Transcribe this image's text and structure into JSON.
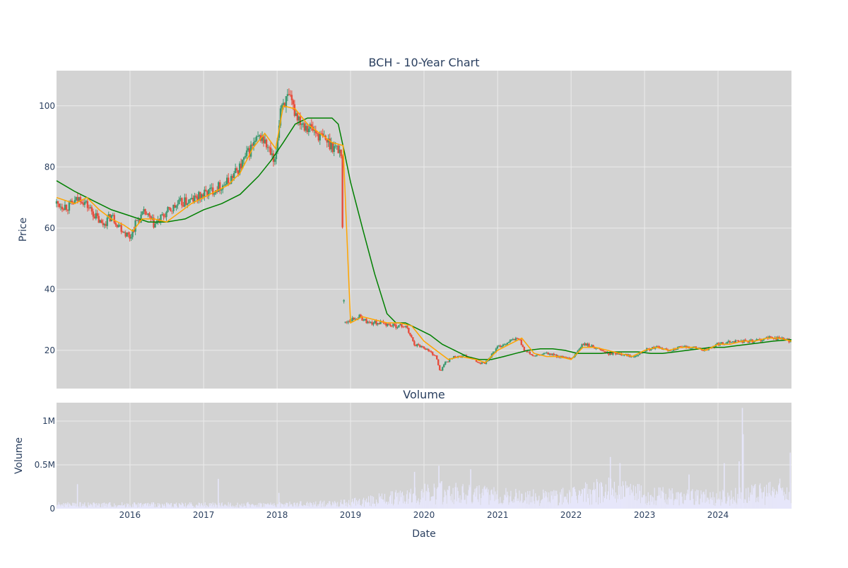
{
  "chart_data": [
    {
      "type": "candlestick",
      "title": "BCH - 10-Year Chart",
      "xlabel": "",
      "ylabel": "Price",
      "ylim": [
        7.5,
        111.5
      ],
      "y_ticks": [
        20,
        40,
        60,
        80,
        100
      ],
      "grid": true,
      "legend": "none",
      "colors": {
        "up": "#3d9970",
        "down": "#e74c3c",
        "ma_short": "#ffa500",
        "ma_long": "#008000",
        "plot_bg": "#d3d3d3",
        "grid": "#ebebeb",
        "text": "#2a3f5f"
      },
      "series": [
        {
          "type": "close_path",
          "x": [
            "2015-01-01",
            "2015-03-01",
            "2015-05-01",
            "2015-07-01",
            "2015-08-15",
            "2015-10-01",
            "2015-12-01",
            "2016-01-01",
            "2016-02-01",
            "2016-03-15",
            "2016-05-01",
            "2016-07-01",
            "2016-09-01",
            "2016-11-01",
            "2017-01-01",
            "2017-03-01",
            "2017-05-01",
            "2017-07-01",
            "2017-09-01",
            "2017-10-15",
            "2017-12-01",
            "2017-12-20",
            "2018-01-20",
            "2018-03-01",
            "2018-04-01",
            "2018-05-01",
            "2018-07-01",
            "2018-08-01",
            "2018-09-15",
            "2018-11-15",
            "2018-12-01",
            "2019-01-01",
            "2019-02-15",
            "2019-04-01",
            "2019-06-01",
            "2019-08-01",
            "2019-10-01",
            "2019-11-15",
            "2020-01-01",
            "2020-03-01",
            "2020-03-20",
            "2020-04-15",
            "2020-06-01",
            "2020-08-01",
            "2020-10-01",
            "2020-11-01",
            "2021-01-01",
            "2021-03-01",
            "2021-04-15",
            "2021-05-15",
            "2021-07-01",
            "2021-09-01",
            "2021-11-01",
            "2022-01-01",
            "2022-03-01",
            "2022-05-01",
            "2022-07-01",
            "2022-09-01",
            "2022-11-01",
            "2023-01-01",
            "2023-03-01",
            "2023-05-01",
            "2023-07-01",
            "2023-09-01",
            "2023-11-01",
            "2024-01-01",
            "2024-03-01",
            "2024-05-01",
            "2024-07-01",
            "2024-09-01",
            "2024-11-01",
            "2024-12-31"
          ],
          "y": [
            68,
            67,
            70,
            65,
            61,
            64,
            59,
            57,
            62,
            65,
            61,
            65,
            68,
            69,
            71,
            73,
            75,
            80,
            87,
            90,
            84,
            80,
            101,
            102,
            98,
            95,
            92,
            90,
            88,
            85,
            29,
            30,
            31,
            29,
            29,
            28,
            28,
            22,
            21,
            18,
            13,
            16,
            18,
            18,
            16,
            16,
            21,
            23,
            24,
            20,
            18,
            19,
            18,
            17,
            22,
            21,
            19,
            19,
            18,
            20,
            21,
            20,
            21,
            21,
            20,
            22,
            23,
            23,
            23,
            24,
            24,
            23
          ]
        },
        {
          "name": "",
          "type": "ma_short",
          "x": [
            "2015-01-01",
            "2015-04-01",
            "2015-06-01",
            "2015-08-01",
            "2015-10-01",
            "2015-12-01",
            "2016-01-15",
            "2016-03-01",
            "2016-05-01",
            "2016-07-01",
            "2016-09-01",
            "2016-11-01",
            "2017-01-01",
            "2017-03-01",
            "2017-05-01",
            "2017-07-01",
            "2017-09-01",
            "2017-11-01",
            "2017-12-25",
            "2018-02-01",
            "2018-04-01",
            "2018-06-01",
            "2018-08-01",
            "2018-10-01",
            "2018-11-25",
            "2019-01-01",
            "2019-03-01",
            "2019-05-01",
            "2019-07-01",
            "2019-09-01",
            "2019-11-01",
            "2020-01-01",
            "2020-03-01",
            "2020-05-01",
            "2020-07-01",
            "2020-09-15",
            "2020-11-01",
            "2021-01-01",
            "2021-03-01",
            "2021-05-01",
            "2021-07-01",
            "2021-09-01",
            "2021-11-01",
            "2022-01-01",
            "2022-03-01",
            "2022-05-01",
            "2022-07-01",
            "2022-09-01",
            "2022-11-01",
            "2023-01-01",
            "2023-03-01",
            "2023-05-01",
            "2023-07-01",
            "2023-09-01",
            "2023-11-01",
            "2024-01-01",
            "2024-03-01",
            "2024-05-01",
            "2024-07-01",
            "2024-09-01",
            "2024-11-01",
            "2024-12-31"
          ],
          "y": [
            70,
            68,
            70,
            66,
            63,
            61,
            59,
            63,
            63,
            62,
            65,
            68,
            70,
            72,
            74,
            78,
            86,
            91,
            86,
            100,
            99,
            94,
            91,
            88,
            87,
            29,
            31,
            30,
            29,
            29,
            28,
            23,
            20,
            17,
            18,
            17,
            16,
            20,
            22,
            24,
            19,
            18,
            18,
            17,
            21,
            21,
            20,
            19,
            18,
            20,
            21,
            20,
            21,
            21,
            20,
            22,
            22,
            23,
            23,
            24,
            24,
            23
          ]
        },
        {
          "name": "",
          "type": "ma_long",
          "x": [
            "2015-01-01",
            "2015-04-01",
            "2015-07-01",
            "2015-10-01",
            "2016-01-01",
            "2016-04-01",
            "2016-07-01",
            "2016-10-01",
            "2017-01-01",
            "2017-04-01",
            "2017-07-01",
            "2017-10-01",
            "2017-12-01",
            "2018-02-01",
            "2018-04-01",
            "2018-06-01",
            "2018-08-01",
            "2018-10-01",
            "2018-11-01",
            "2018-12-01",
            "2019-01-01",
            "2019-03-01",
            "2019-05-01",
            "2019-07-01",
            "2019-08-15",
            "2019-10-01",
            "2019-12-01",
            "2020-02-01",
            "2020-04-01",
            "2020-06-01",
            "2020-08-01",
            "2020-10-01",
            "2020-12-01",
            "2021-02-01",
            "2021-04-01",
            "2021-06-01",
            "2021-08-01",
            "2021-10-01",
            "2021-12-01",
            "2022-02-01",
            "2022-04-01",
            "2022-06-01",
            "2022-08-01",
            "2022-10-01",
            "2022-12-01",
            "2023-02-01",
            "2023-04-01",
            "2023-06-01",
            "2023-08-01",
            "2023-10-01",
            "2023-12-01",
            "2024-02-01",
            "2024-04-01",
            "2024-06-01",
            "2024-08-01",
            "2024-10-01",
            "2024-12-31"
          ],
          "y": [
            75.5,
            72,
            69,
            66,
            64,
            62,
            62,
            63,
            66,
            68,
            71,
            77,
            82,
            88,
            94,
            96,
            96,
            96,
            94,
            85,
            75,
            60,
            45,
            32,
            29,
            29,
            27,
            25,
            22,
            20,
            18,
            17,
            17,
            18,
            19,
            20,
            20.5,
            20.5,
            20,
            19,
            19,
            19,
            19.5,
            19.5,
            19.5,
            19,
            19,
            19.5,
            20,
            20.5,
            21,
            21,
            21.5,
            22,
            22.5,
            23,
            23.5
          ]
        }
      ],
      "notes": ""
    },
    {
      "type": "bar",
      "title": "Volume",
      "xlabel": "Date",
      "ylabel": "Volume",
      "ylim": [
        0,
        1210000
      ],
      "y_tick_labels": [
        "0",
        "0.5M",
        "1M"
      ],
      "y_ticks": [
        0,
        500000,
        1000000
      ],
      "x_tick_labels": [
        "2016",
        "2017",
        "2018",
        "2019",
        "2020",
        "2021",
        "2022",
        "2023",
        "2024"
      ],
      "x_ticks": [
        "2016-01-01",
        "2017-01-01",
        "2018-01-01",
        "2019-01-01",
        "2020-01-01",
        "2021-01-01",
        "2022-01-01",
        "2023-01-01",
        "2024-01-01"
      ],
      "xlim": [
        "2015-01-01",
        "2024-12-31"
      ],
      "grid": true,
      "legend": "none",
      "colors": {
        "bar": "#e6e6fa",
        "plot_bg": "#d3d3d3"
      },
      "volume_level": {
        "x": [
          "2015-01-01",
          "2016-01-01",
          "2017-01-01",
          "2018-01-01",
          "2018-12-01",
          "2019-06-01",
          "2019-12-01",
          "2020-04-01",
          "2020-10-01",
          "2021-06-01",
          "2022-01-01",
          "2022-07-01",
          "2023-01-01",
          "2023-07-01",
          "2024-01-01",
          "2024-06-01",
          "2024-12-31"
        ],
        "y": [
          50000,
          50000,
          50000,
          50000,
          70000,
          120000,
          180000,
          220000,
          180000,
          150000,
          170000,
          250000,
          180000,
          150000,
          150000,
          180000,
          250000
        ]
      },
      "volume_spikes": [
        {
          "x": "2015-04-15",
          "y": 280000
        },
        {
          "x": "2017-03-15",
          "y": 340000
        },
        {
          "x": "2018-01-10",
          "y": 180000
        },
        {
          "x": "2019-11-15",
          "y": 420000
        },
        {
          "x": "2020-03-15",
          "y": 490000
        },
        {
          "x": "2020-08-20",
          "y": 450000
        },
        {
          "x": "2022-07-15",
          "y": 590000
        },
        {
          "x": "2022-09-01",
          "y": 520000
        },
        {
          "x": "2023-08-10",
          "y": 390000
        },
        {
          "x": "2024-02-01",
          "y": 520000
        },
        {
          "x": "2024-04-15",
          "y": 540000
        },
        {
          "x": "2024-05-01",
          "y": 1150000
        },
        {
          "x": "2024-05-05",
          "y": 850000
        },
        {
          "x": "2024-12-25",
          "y": 640000
        }
      ]
    }
  ]
}
